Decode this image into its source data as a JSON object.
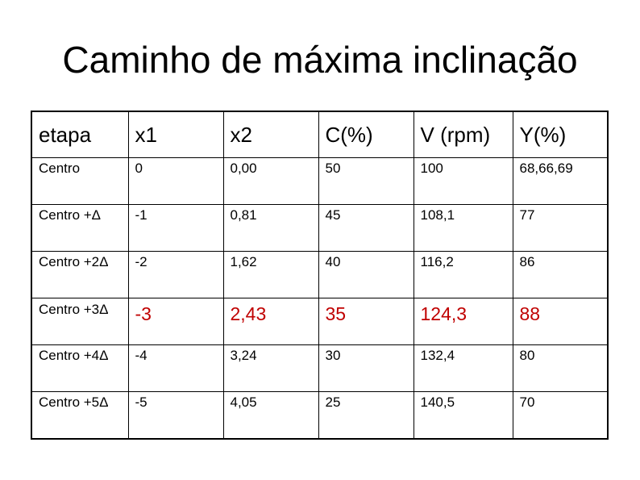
{
  "slide": {
    "title": "Caminho de máxima inclinação"
  },
  "colors": {
    "text": "#000000",
    "highlight": "#c00000",
    "border": "#000000"
  },
  "table": {
    "headers": [
      "etapa",
      "x1",
      "x2",
      "C(%)",
      "V (rpm)",
      "Y(%)"
    ],
    "rows": [
      {
        "cells": [
          "Centro",
          "0",
          "0,00",
          "50",
          "100",
          "68,66,69"
        ],
        "highlight": false
      },
      {
        "cells": [
          "Centro +Δ",
          "-1",
          "0,81",
          "45",
          "108,1",
          "77"
        ],
        "highlight": false
      },
      {
        "cells": [
          "Centro +2Δ",
          "-2",
          "1,62",
          "40",
          "116,2",
          "86"
        ],
        "highlight": false
      },
      {
        "cells": [
          "Centro +3Δ",
          "-3",
          "2,43",
          "35",
          "124,3",
          "88"
        ],
        "highlight": true
      },
      {
        "cells": [
          "Centro +4Δ",
          "-4",
          "3,24",
          "30",
          "132,4",
          "80"
        ],
        "highlight": false
      },
      {
        "cells": [
          "Centro +5Δ",
          "-5",
          "4,05",
          "25",
          "140,5",
          "70"
        ],
        "highlight": false
      }
    ]
  }
}
